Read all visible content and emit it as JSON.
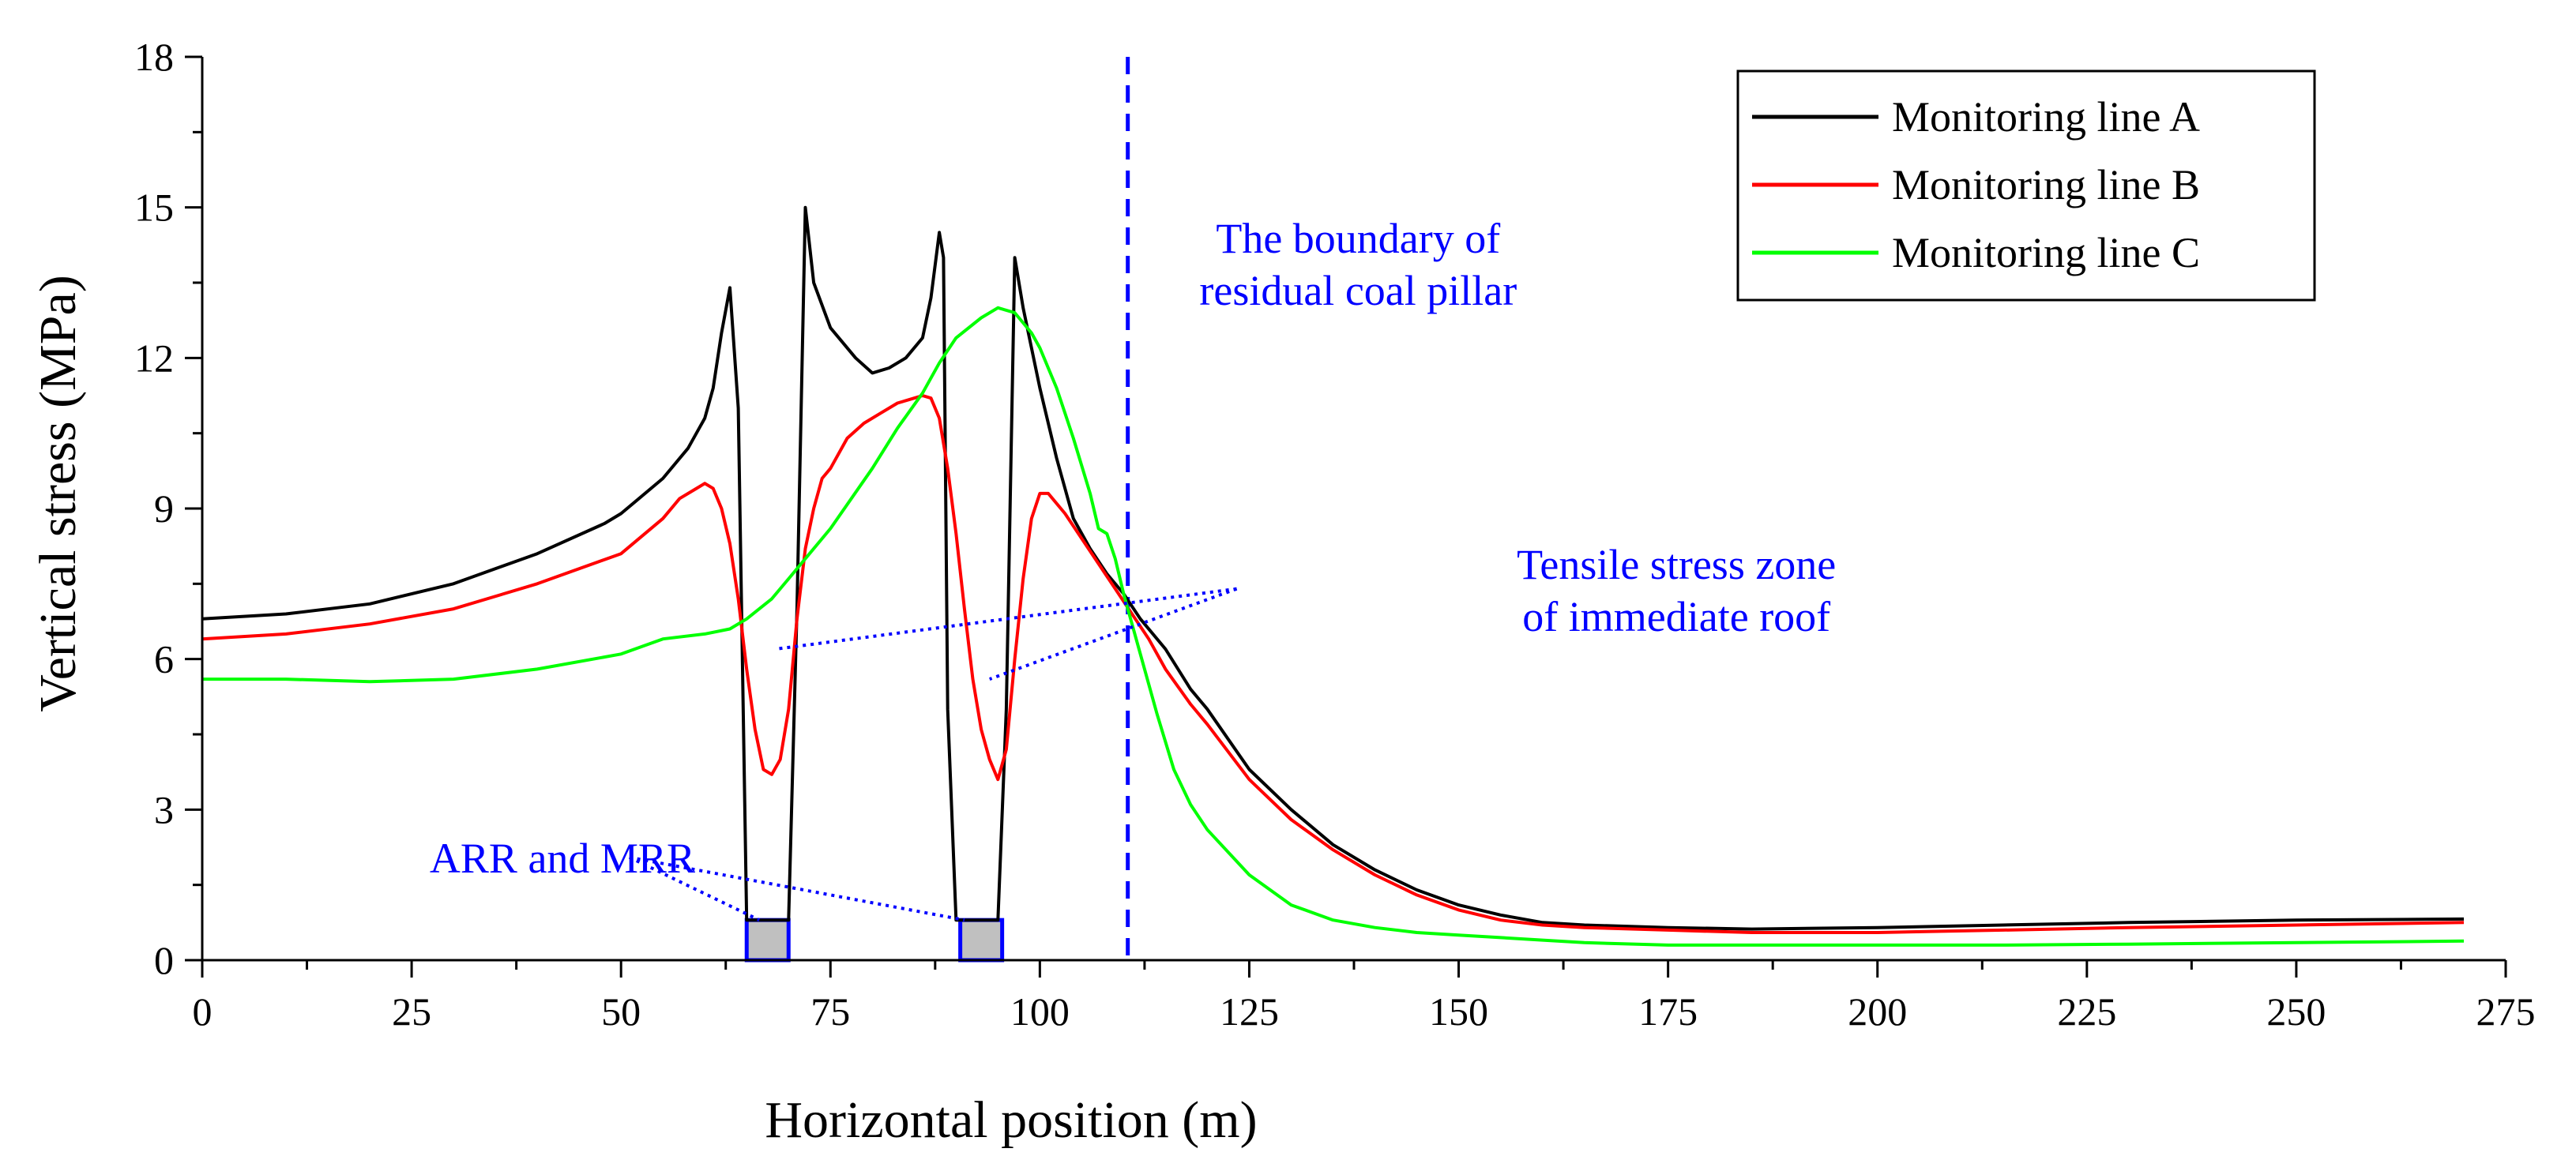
{
  "chart_data": {
    "type": "line",
    "title": "",
    "xlabel": "Horizontal position (m)",
    "ylabel": "Vertical stress (MPa)",
    "xlim": [
      0,
      275
    ],
    "ylim": [
      0,
      18
    ],
    "x_ticks": [
      0,
      25,
      50,
      75,
      100,
      125,
      150,
      175,
      200,
      225,
      250,
      275
    ],
    "y_ticks": [
      0,
      3,
      6,
      9,
      12,
      15,
      18
    ],
    "legend_position": "top-right",
    "series": [
      {
        "name": "Monitoring line A",
        "color": "#000000",
        "x": [
          0,
          10,
          20,
          30,
          40,
          48,
          50,
          55,
          58,
          60,
          61,
          62,
          63,
          64,
          65,
          70,
          71,
          72,
          73,
          75,
          78,
          80,
          82,
          84,
          86,
          87,
          88,
          88.5,
          89,
          90,
          91,
          95,
          96,
          97,
          98,
          100,
          102,
          104,
          106,
          108,
          110,
          112,
          115,
          118,
          120,
          125,
          130,
          135,
          140,
          145,
          150,
          155,
          160,
          165,
          175,
          185,
          200,
          215,
          230,
          250,
          270
        ],
        "values": [
          6.8,
          6.9,
          7.1,
          7.5,
          8.1,
          8.7,
          8.9,
          9.6,
          10.2,
          10.8,
          11.4,
          12.5,
          13.4,
          11.0,
          0.8,
          0.8,
          7.0,
          15.0,
          13.5,
          12.6,
          12.0,
          11.7,
          11.8,
          12.0,
          12.4,
          13.2,
          14.5,
          14.0,
          5.0,
          0.8,
          0.8,
          0.8,
          5.0,
          14.0,
          13.0,
          11.4,
          10.0,
          8.8,
          8.2,
          7.7,
          7.3,
          6.8,
          6.2,
          5.4,
          5.0,
          3.8,
          3.0,
          2.3,
          1.8,
          1.4,
          1.1,
          0.9,
          0.75,
          0.7,
          0.65,
          0.62,
          0.65,
          0.7,
          0.75,
          0.8,
          0.82
        ]
      },
      {
        "name": "Monitoring line B",
        "color": "#ff0000",
        "x": [
          0,
          10,
          20,
          30,
          40,
          50,
          55,
          57,
          59,
          60,
          61,
          62,
          63,
          64,
          65,
          66,
          67,
          68,
          69,
          70,
          71,
          72,
          73,
          74,
          75,
          77,
          79,
          81,
          83,
          85,
          86,
          87,
          88,
          89,
          90,
          91,
          92,
          93,
          94,
          95,
          96,
          97,
          98,
          99,
          100,
          101,
          103,
          105,
          107,
          109,
          111,
          113,
          115,
          118,
          120,
          125,
          130,
          135,
          140,
          145,
          150,
          155,
          160,
          165,
          175,
          185,
          200,
          215,
          230,
          250,
          270
        ],
        "values": [
          6.4,
          6.5,
          6.7,
          7.0,
          7.5,
          8.1,
          8.8,
          9.2,
          9.4,
          9.5,
          9.4,
          9.0,
          8.3,
          7.2,
          5.8,
          4.6,
          3.8,
          3.7,
          4.0,
          5.0,
          6.8,
          8.2,
          9.0,
          9.6,
          9.8,
          10.4,
          10.7,
          10.9,
          11.1,
          11.2,
          11.25,
          11.2,
          10.8,
          9.8,
          8.5,
          7.0,
          5.6,
          4.6,
          4.0,
          3.6,
          4.2,
          6.0,
          7.6,
          8.8,
          9.3,
          9.3,
          8.9,
          8.4,
          7.9,
          7.4,
          6.9,
          6.4,
          5.8,
          5.1,
          4.7,
          3.6,
          2.8,
          2.2,
          1.7,
          1.3,
          1.0,
          0.8,
          0.7,
          0.65,
          0.6,
          0.55,
          0.55,
          0.6,
          0.65,
          0.7,
          0.75
        ]
      },
      {
        "name": "Monitoring line C",
        "color": "#00ff00",
        "x": [
          0,
          10,
          20,
          30,
          40,
          50,
          55,
          60,
          63,
          65,
          68,
          70,
          75,
          80,
          83,
          86,
          88,
          90,
          93,
          95,
          97,
          99,
          100,
          102,
          104,
          106,
          107,
          108,
          109,
          110,
          112,
          114,
          116,
          118,
          120,
          125,
          130,
          135,
          140,
          145,
          150,
          155,
          160,
          165,
          175,
          185,
          200,
          215,
          230,
          250,
          270
        ],
        "values": [
          5.6,
          5.6,
          5.55,
          5.6,
          5.8,
          6.1,
          6.4,
          6.5,
          6.6,
          6.8,
          7.2,
          7.6,
          8.6,
          9.8,
          10.6,
          11.3,
          11.9,
          12.4,
          12.8,
          13.0,
          12.9,
          12.5,
          12.2,
          11.4,
          10.4,
          9.3,
          8.6,
          8.5,
          8.0,
          7.3,
          6.1,
          4.9,
          3.8,
          3.1,
          2.6,
          1.7,
          1.1,
          0.8,
          0.65,
          0.55,
          0.5,
          0.45,
          0.4,
          0.35,
          0.3,
          0.3,
          0.3,
          0.3,
          0.32,
          0.35,
          0.38
        ]
      }
    ],
    "regions": [
      {
        "x0": 65,
        "x1": 70,
        "y0": 0,
        "y1": 0.8,
        "fill": "#c0c0c0",
        "stroke": "#0000ff"
      },
      {
        "x0": 90.5,
        "x1": 95.5,
        "y0": 0,
        "y1": 0.8,
        "fill": "#c0c0c0",
        "stroke": "#0000ff"
      }
    ],
    "vline": {
      "x": 110.5,
      "color": "#0000ff",
      "style": "dashed"
    },
    "annotations": [
      {
        "text_lines": [
          "The boundary of",
          "residual coal pillar"
        ],
        "anchor": [
          138,
          14.1
        ],
        "color": "#0000ff",
        "pointers": []
      },
      {
        "text_lines": [
          "Tensile stress zone",
          "of immediate roof"
        ],
        "anchor": [
          176,
          7.6
        ],
        "color": "#0000ff",
        "pointers": [
          [
            123.5,
            7.4,
            68.5,
            6.2
          ],
          [
            123.5,
            7.4,
            94,
            5.6
          ]
        ]
      },
      {
        "text_lines": [
          "ARR and MRR"
        ],
        "anchor": [
          43,
          1.75
        ],
        "color": "#0000ff",
        "pointers": [
          [
            51,
            2.05,
            66.5,
            0.8
          ],
          [
            51,
            2.05,
            91,
            0.8
          ]
        ]
      }
    ]
  }
}
